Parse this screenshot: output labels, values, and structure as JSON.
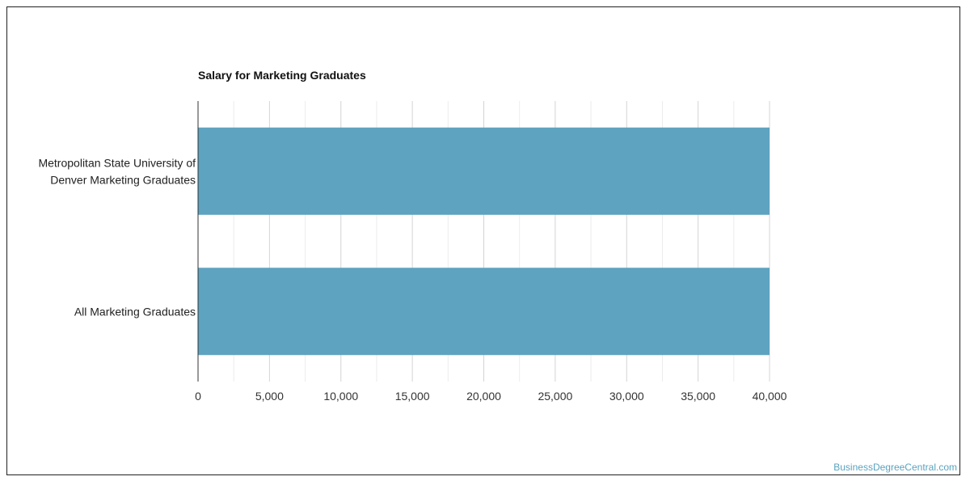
{
  "chart_data": {
    "type": "bar",
    "orientation": "horizontal",
    "title": "Salary for Marketing Graduates",
    "categories": [
      "Metropolitan State University of Denver Marketing Graduates",
      "All Marketing Graduates"
    ],
    "category_lines": [
      [
        "Metropolitan State University of",
        "Denver Marketing Graduates"
      ],
      [
        "All Marketing Graduates"
      ]
    ],
    "values": [
      40000,
      40000
    ],
    "xlim": [
      0,
      40000
    ],
    "xticks": [
      0,
      5000,
      10000,
      15000,
      20000,
      25000,
      30000,
      35000,
      40000
    ],
    "xtick_labels": [
      "0",
      "5,000",
      "10,000",
      "15,000",
      "20,000",
      "25,000",
      "30,000",
      "35,000",
      "40,000"
    ],
    "grid": true,
    "bar_color": "#5ea3c0"
  },
  "footer": {
    "source": "BusinessDegreeCentral.com"
  }
}
